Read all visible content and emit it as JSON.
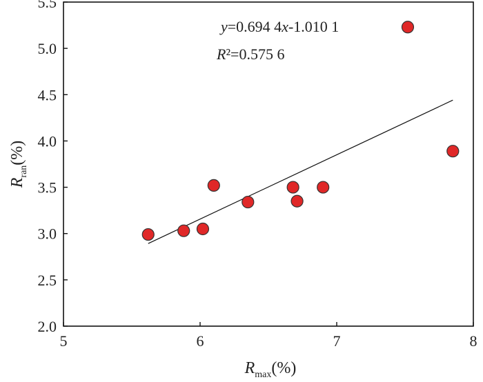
{
  "chart_data": {
    "type": "scatter",
    "title": "",
    "xlabel": {
      "main": "R",
      "sub": "max",
      "unit": "(%)"
    },
    "ylabel": {
      "main": "R",
      "sub": "ran",
      "unit": "(%)"
    },
    "xlim": [
      5,
      8
    ],
    "ylim": [
      2.0,
      5.5
    ],
    "x_ticks": [
      5,
      6,
      7,
      8
    ],
    "x_tick_labels": [
      "5",
      "6",
      "7",
      "8"
    ],
    "y_ticks": [
      2.0,
      2.5,
      3.0,
      3.5,
      4.0,
      4.5,
      5.0,
      5.5
    ],
    "y_tick_labels": [
      "2.0",
      "2.5",
      "3.0",
      "3.5",
      "4.0",
      "4.5",
      "5.0",
      "5.5"
    ],
    "grid": false,
    "legend": "none",
    "series": [
      {
        "x": [
          5.62,
          5.88,
          6.02,
          6.1,
          6.35,
          6.68,
          6.71,
          6.9,
          7.85,
          7.52
        ],
        "y": [
          2.99,
          3.03,
          3.05,
          3.52,
          3.34,
          3.5,
          3.35,
          3.5,
          3.89,
          5.23
        ],
        "marker": "circle",
        "color": "#e02828",
        "edgecolor": "#333333"
      }
    ],
    "trendline": {
      "slope": 0.6944,
      "intercept": -1.0101,
      "x_range": [
        5.62,
        7.85
      ],
      "color": "#111111"
    },
    "annotations": {
      "equation": {
        "y": "y",
        "eq1": "=0.694 4",
        "x": "x",
        "eq2": "-1.010 1"
      },
      "r2": {
        "r": "R",
        "rest": "²=0.575 6"
      }
    }
  }
}
